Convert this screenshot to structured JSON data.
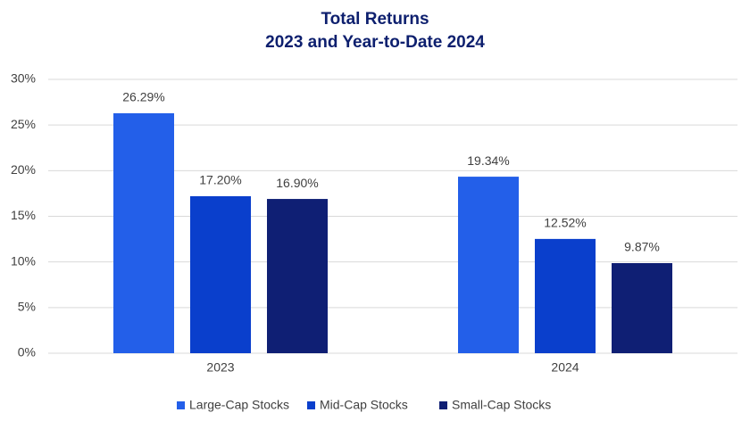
{
  "chart_data": {
    "type": "bar",
    "title": "Total Returns",
    "subtitle": "2023 and Year-to-Date 2024",
    "categories": [
      "2023",
      "2024"
    ],
    "series": [
      {
        "name": "Large-Cap Stocks",
        "color": "#235fe9",
        "values": [
          26.29,
          19.34
        ],
        "value_labels": [
          "26.29%",
          "19.34%"
        ]
      },
      {
        "name": "Mid-Cap Stocks",
        "color": "#0a3fcc",
        "values": [
          17.2,
          12.52
        ],
        "value_labels": [
          "17.20%",
          "12.52%"
        ]
      },
      {
        "name": "Small-Cap Stocks",
        "color": "#0f1f74",
        "values": [
          16.9,
          9.87
        ],
        "value_labels": [
          "16.90%",
          "9.87%"
        ]
      }
    ],
    "ylim": [
      0,
      30
    ],
    "yticks": [
      {
        "value": 0,
        "label": "0%"
      },
      {
        "value": 5,
        "label": "5%"
      },
      {
        "value": 10,
        "label": "10%"
      },
      {
        "value": 15,
        "label": "15%"
      },
      {
        "value": 20,
        "label": "20%"
      },
      {
        "value": 25,
        "label": "25%"
      },
      {
        "value": 30,
        "label": "30%"
      }
    ],
    "grid": true,
    "legend": "bottom"
  }
}
